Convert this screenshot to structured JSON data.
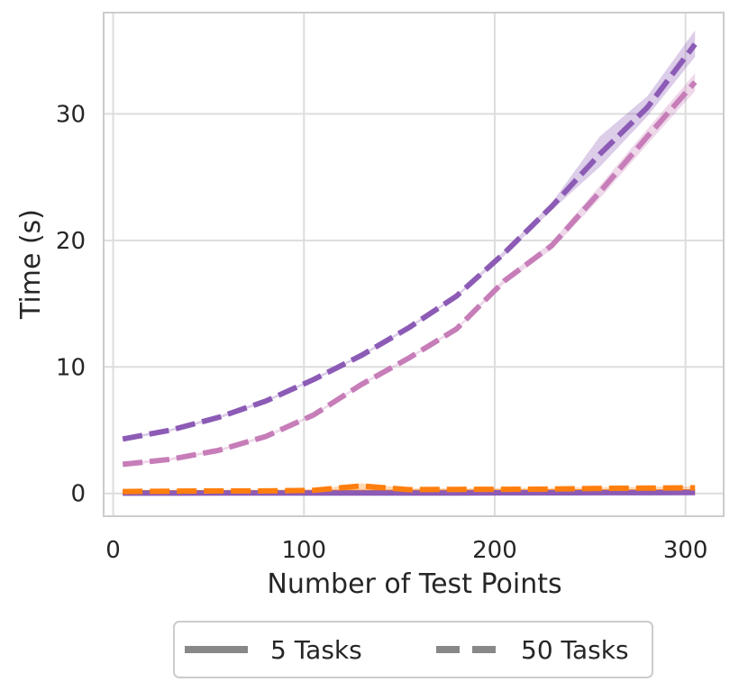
{
  "chart_data": {
    "type": "line",
    "title": "",
    "xlabel": "Number of Test Points",
    "ylabel": "Time (s)",
    "xlim": [
      -5,
      320
    ],
    "ylim": [
      -1.8,
      38
    ],
    "xticks": [
      0,
      100,
      200,
      300
    ],
    "yticks": [
      0,
      10,
      20,
      30
    ],
    "grid": true,
    "legend": {
      "placement": "bottom-center, outside plot",
      "entries": [
        {
          "label": "5 Tasks",
          "linestyle": "solid"
        },
        {
          "label": "50 Tasks",
          "linestyle": "dashed"
        }
      ]
    },
    "x": [
      5,
      30,
      55,
      80,
      105,
      130,
      155,
      180,
      205,
      230,
      255,
      280,
      305
    ],
    "series": [
      {
        "color": "#8c5bb5",
        "tasks": 50,
        "linestyle": "dashed",
        "values": [
          4.3,
          5.0,
          6.0,
          7.3,
          9.0,
          10.9,
          13.1,
          15.6,
          19.0,
          22.7,
          26.8,
          30.5,
          35.5
        ],
        "band_low": [
          4.2,
          4.9,
          5.9,
          7.2,
          8.9,
          10.8,
          13.0,
          15.5,
          18.8,
          22.4,
          25.8,
          29.8,
          34.5
        ],
        "band_high": [
          4.4,
          5.1,
          6.1,
          7.4,
          9.1,
          11.0,
          13.2,
          15.7,
          19.2,
          23.0,
          28.2,
          31.4,
          36.6
        ]
      },
      {
        "color": "#c67db8",
        "tasks": 50,
        "linestyle": "dashed",
        "values": [
          2.3,
          2.7,
          3.4,
          4.5,
          6.2,
          8.6,
          10.7,
          13.0,
          16.8,
          19.6,
          23.8,
          28.2,
          32.5
        ],
        "band_low": [
          2.2,
          2.6,
          3.3,
          4.4,
          6.1,
          8.5,
          10.6,
          12.9,
          16.6,
          19.3,
          23.3,
          27.6,
          31.8
        ],
        "band_high": [
          2.4,
          2.8,
          3.5,
          4.6,
          6.3,
          8.7,
          10.8,
          13.1,
          17.0,
          19.9,
          24.3,
          28.8,
          33.2
        ]
      },
      {
        "color": "#ff7f0e",
        "tasks": 50,
        "linestyle": "dashed",
        "values": [
          0.15,
          0.18,
          0.2,
          0.2,
          0.25,
          0.6,
          0.3,
          0.32,
          0.33,
          0.35,
          0.4,
          0.42,
          0.45
        ],
        "band_low": [
          0.1,
          0.12,
          0.15,
          0.15,
          0.2,
          0.3,
          0.2,
          0.25,
          0.25,
          0.28,
          0.3,
          0.32,
          0.35
        ],
        "band_high": [
          0.2,
          0.24,
          0.26,
          0.26,
          0.3,
          0.8,
          0.4,
          0.4,
          0.42,
          0.44,
          0.5,
          0.52,
          0.55
        ]
      },
      {
        "color": "#ff7f0e",
        "tasks": 5,
        "linestyle": "solid",
        "values": [
          0.05,
          0.05,
          0.06,
          0.06,
          0.07,
          0.08,
          0.08,
          0.09,
          0.09,
          0.1,
          0.1,
          0.11,
          0.12
        ]
      },
      {
        "color": "#8c5bb5",
        "tasks": 5,
        "linestyle": "solid",
        "values": [
          0.02,
          0.02,
          0.03,
          0.03,
          0.03,
          0.04,
          0.04,
          0.04,
          0.05,
          0.05,
          0.06,
          0.06,
          0.07
        ]
      }
    ]
  }
}
